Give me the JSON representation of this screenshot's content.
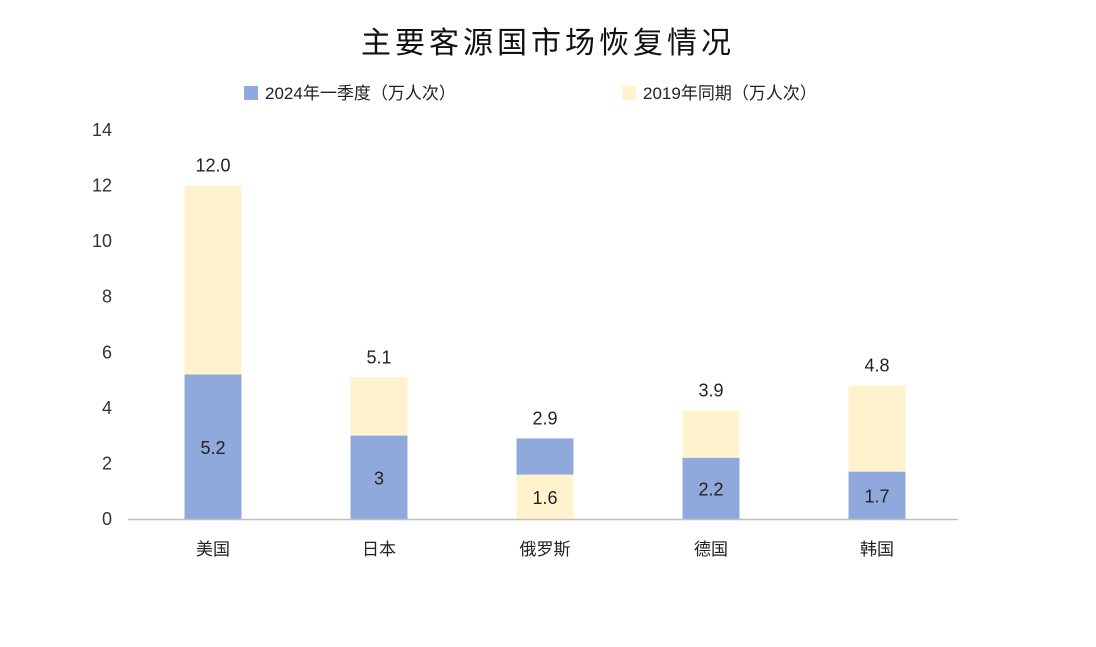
{
  "chart_data": {
    "type": "bar",
    "title": "主要客源国市场恢复情况",
    "categories": [
      "美国",
      "日本",
      "俄罗斯",
      "德国",
      "韩国"
    ],
    "series": [
      {
        "name": "2024年一季度（万人次）",
        "color": "#8FA9DC",
        "values": [
          5.2,
          3,
          2.9,
          2.2,
          1.7
        ],
        "labels": [
          "5.2",
          "3",
          "2.9",
          "2.2",
          "1.7"
        ]
      },
      {
        "name": "2019年同期（万人次）",
        "color": "#FFF2CC",
        "values": [
          12.0,
          5.1,
          1.6,
          3.9,
          4.8
        ],
        "labels": [
          "12.0",
          "5.1",
          "1.6",
          "3.9",
          "4.8"
        ]
      }
    ],
    "ylim": [
      0,
      14
    ],
    "yticks": [
      "0",
      "2",
      "4",
      "6",
      "8",
      "10",
      "12",
      "14"
    ],
    "legend": "top",
    "grid": false,
    "xlabel": "",
    "ylabel": ""
  }
}
